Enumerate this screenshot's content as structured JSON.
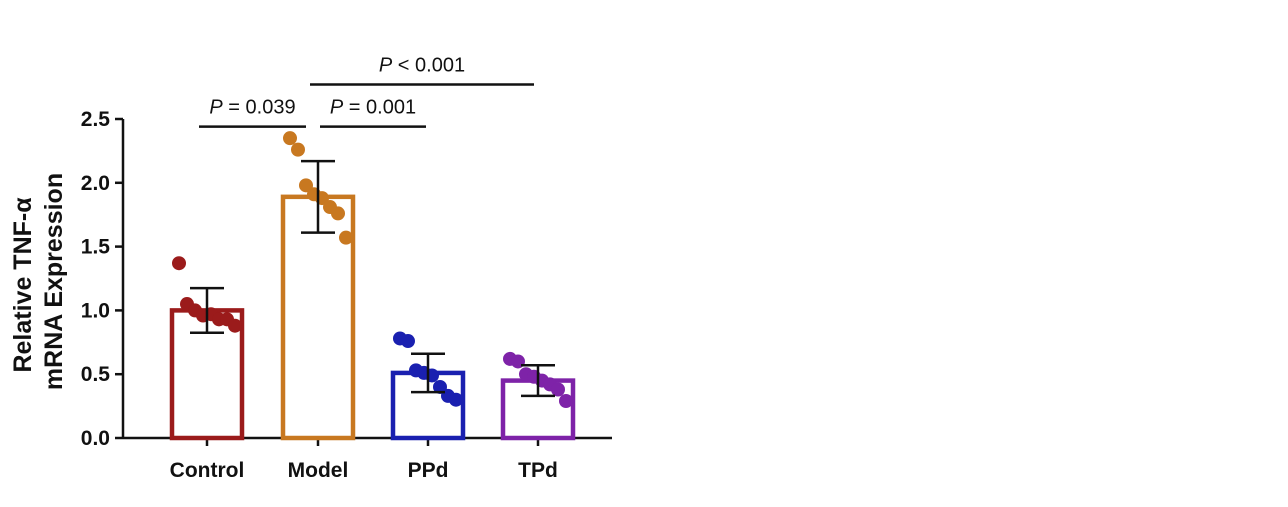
{
  "chart_data": {
    "type": "bar",
    "ylabel_lines": [
      "Relative TNF-α",
      "mRNA Expression"
    ],
    "ylim": [
      0,
      2.5
    ],
    "yticks": [
      "0.0",
      "0.5",
      "1.0",
      "1.5",
      "2.0",
      "2.5"
    ],
    "categories": [
      "Control",
      "Model",
      "PPd",
      "TPd"
    ],
    "values": [
      1.0,
      1.89,
      0.51,
      0.45
    ],
    "error": [
      0.175,
      0.28,
      0.15,
      0.12
    ],
    "colors": [
      "#9b1b1b",
      "#c87820",
      "#1a20b0",
      "#7e23a8"
    ],
    "points": [
      [
        1.37,
        1.05,
        1.0,
        0.96,
        0.97,
        0.93,
        0.93,
        0.88
      ],
      [
        2.35,
        2.26,
        1.98,
        1.91,
        1.88,
        1.81,
        1.76,
        1.57
      ],
      [
        0.78,
        0.76,
        0.53,
        0.51,
        0.49,
        0.4,
        0.33,
        0.3
      ],
      [
        0.62,
        0.6,
        0.5,
        0.48,
        0.45,
        0.42,
        0.38,
        0.29
      ]
    ],
    "significance": [
      {
        "from": 0,
        "to": 1,
        "y": 2.44,
        "p_symbol": "P",
        "text": " = 0.039"
      },
      {
        "from": 1,
        "to": 2,
        "y": 2.44,
        "p_symbol": "P",
        "text": " = 0.001"
      },
      {
        "from": 1,
        "to": 3,
        "y": 2.77,
        "p_symbol": "P",
        "text": " < 0.001"
      }
    ]
  }
}
